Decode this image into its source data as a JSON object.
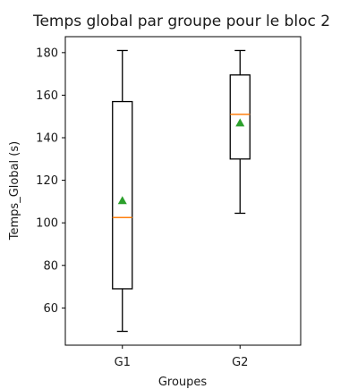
{
  "chart_data": {
    "type": "boxplot",
    "title": "Temps global par groupe pour le bloc 2",
    "xlabel": "Groupes",
    "ylabel": "Temps_Global (s)",
    "ylim": [
      42.5,
      187.5
    ],
    "yticks": [
      60,
      80,
      100,
      120,
      140,
      160,
      180
    ],
    "grid": false,
    "categories": [
      "G1",
      "G2"
    ],
    "boxes": [
      {
        "label": "G1",
        "whisker_low": 49,
        "q1": 69,
        "median": 102.5,
        "q3": 157,
        "whisker_high": 181,
        "mean": 110.5
      },
      {
        "label": "G2",
        "whisker_low": 104.5,
        "q1": 130,
        "median": 151,
        "q3": 169.5,
        "whisker_high": 181,
        "mean": 147
      }
    ],
    "colors": {
      "box": "#000000",
      "median": "#ff7f0e",
      "mean": "#2ca02c"
    }
  }
}
